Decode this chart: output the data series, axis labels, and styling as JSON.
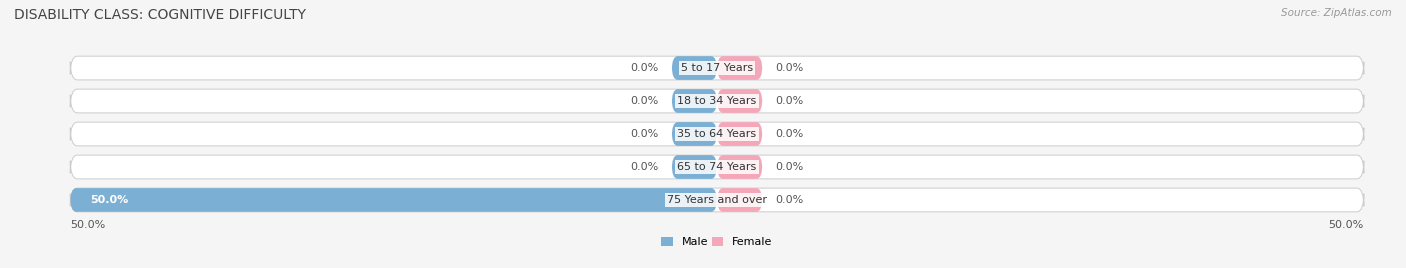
{
  "title": "DISABILITY CLASS: COGNITIVE DIFFICULTY",
  "source": "Source: ZipAtlas.com",
  "categories": [
    "5 to 17 Years",
    "18 to 34 Years",
    "35 to 64 Years",
    "65 to 74 Years",
    "75 Years and over"
  ],
  "male_values": [
    0.0,
    0.0,
    0.0,
    0.0,
    50.0
  ],
  "female_values": [
    0.0,
    0.0,
    0.0,
    0.0,
    0.0
  ],
  "male_color": "#7bafd4",
  "female_color": "#f4a7b9",
  "bar_border_color": "#cccccc",
  "axis_max": 50.0,
  "title_fontsize": 10,
  "label_fontsize": 8,
  "category_fontsize": 8,
  "bar_height": 0.72,
  "stub_size": 3.5,
  "fig_bg_color": "#f5f5f5",
  "legend_male": "Male",
  "legend_female": "Female"
}
